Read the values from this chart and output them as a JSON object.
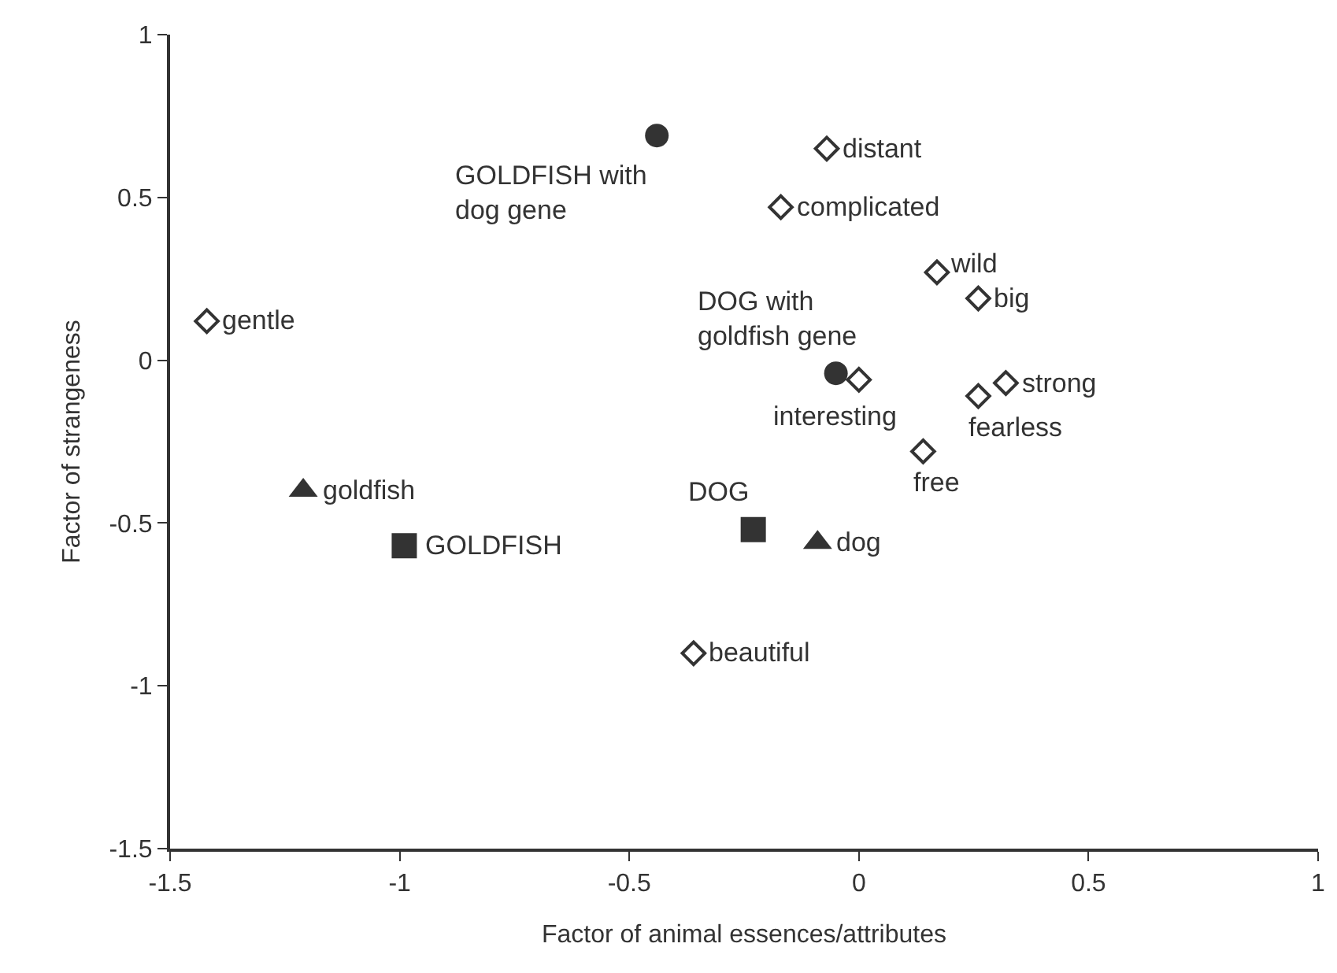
{
  "chart_data": {
    "type": "scatter",
    "xlabel": "Factor of animal essences/attributes",
    "ylabel": "Factor of strangeness",
    "xlim": [
      -1.5,
      1
    ],
    "ylim": [
      -1.5,
      1
    ],
    "xticks": [
      -1.5,
      -1,
      -0.5,
      0,
      0.5,
      1
    ],
    "yticks": [
      -1.5,
      -1,
      -0.5,
      0,
      0.5,
      1
    ],
    "series": [
      {
        "marker": "diamond",
        "color": "#333333",
        "x": [
          -1.42,
          -0.36,
          -0.07,
          -0.17,
          0.17,
          0.26,
          0.0,
          0.32,
          0.26,
          0.14
        ],
        "values": [
          0.12,
          -0.9,
          0.65,
          0.47,
          0.27,
          0.19,
          -0.06,
          -0.07,
          -0.11,
          -0.28
        ]
      },
      {
        "marker": "circle",
        "color": "#333333",
        "x": [
          -0.44,
          -0.05
        ],
        "values": [
          0.69,
          -0.04
        ]
      },
      {
        "marker": "triangle",
        "color": "#333333",
        "x": [
          -1.21,
          -0.09
        ],
        "values": [
          -0.4,
          -0.56
        ]
      },
      {
        "marker": "square",
        "color": "#333333",
        "x": [
          -0.99,
          -0.23
        ],
        "values": [
          -0.57,
          -0.52
        ]
      }
    ],
    "annotations": [
      {
        "text": "gentle",
        "x": -1.42,
        "y": 0.12
      },
      {
        "text": "beautiful",
        "x": -0.36,
        "y": -0.9
      },
      {
        "text": "distant",
        "x": -0.07,
        "y": 0.65
      },
      {
        "text": "complicated",
        "x": -0.17,
        "y": 0.47
      },
      {
        "text": "wild",
        "x": 0.17,
        "y": 0.27
      },
      {
        "text": "big",
        "x": 0.26,
        "y": 0.19
      },
      {
        "text": "interesting",
        "x": 0.0,
        "y": -0.06
      },
      {
        "text": "strong",
        "x": 0.32,
        "y": -0.07
      },
      {
        "text": "fearless",
        "x": 0.26,
        "y": -0.11
      },
      {
        "text": "free",
        "x": 0.14,
        "y": -0.28
      },
      {
        "text": "GOLDFISH with dog gene",
        "x": -0.44,
        "y": 0.69
      },
      {
        "text": "DOG with goldfish gene",
        "x": -0.05,
        "y": -0.04
      },
      {
        "text": "goldfish",
        "x": -1.21,
        "y": -0.4
      },
      {
        "text": "dog",
        "x": -0.09,
        "y": -0.56
      },
      {
        "text": "GOLDFISH",
        "x": -0.99,
        "y": -0.57
      },
      {
        "text": "DOG",
        "x": -0.23,
        "y": -0.52
      }
    ]
  }
}
